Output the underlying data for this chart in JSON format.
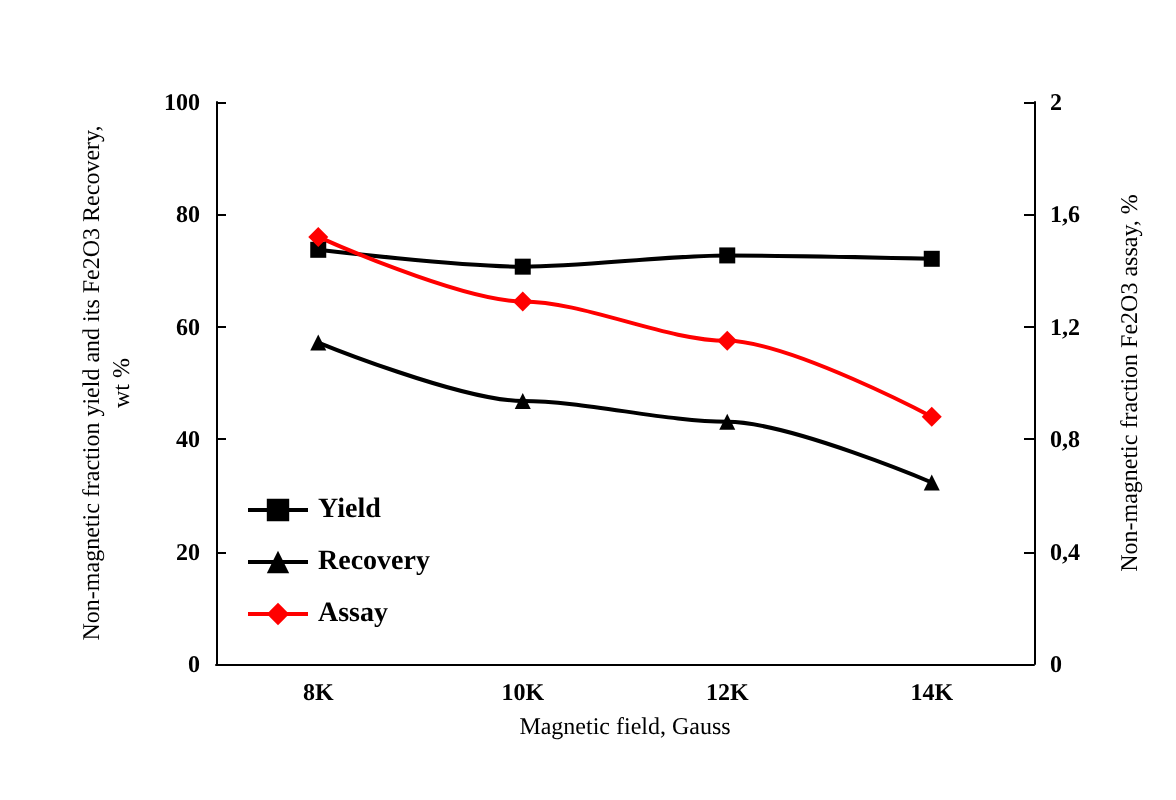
{
  "chart_data": {
    "type": "line",
    "xlabel": "Magnetic field, Gauss",
    "ylabel": "Non-magnetic fraction yield and its Fe2O3 Recovery,\nwt %",
    "y2label": "Non-magnetic fraction Fe2O3 assay, %",
    "categories": [
      "8K",
      "10K",
      "12K",
      "14K"
    ],
    "series": [
      {
        "name": "Yield",
        "color": "#000000",
        "marker": "square",
        "values": [
          73.7,
          70.7,
          72.7,
          72.1
        ]
      },
      {
        "name": "Recovery",
        "color": "#000000",
        "marker": "triangle",
        "values": [
          57.2,
          46.8,
          43.1,
          32.3
        ]
      },
      {
        "name": "Assay",
        "color": "#ff0000",
        "marker": "diamond",
        "axis": "y2",
        "values": [
          1.52,
          1.29,
          1.15,
          0.88
        ]
      }
    ],
    "ylim": [
      0,
      100
    ],
    "yticks": [
      0,
      20,
      40,
      60,
      80,
      100
    ],
    "y2lim": [
      0,
      2
    ],
    "y2ticks": [
      0,
      {
        "value": 0.4,
        "label": "0,4"
      },
      {
        "value": 0.8,
        "label": "0,8"
      },
      {
        "value": 1.2,
        "label": "1,2"
      },
      {
        "value": 1.6,
        "label": "1,6"
      },
      2
    ],
    "legend": "left",
    "grid": false
  }
}
